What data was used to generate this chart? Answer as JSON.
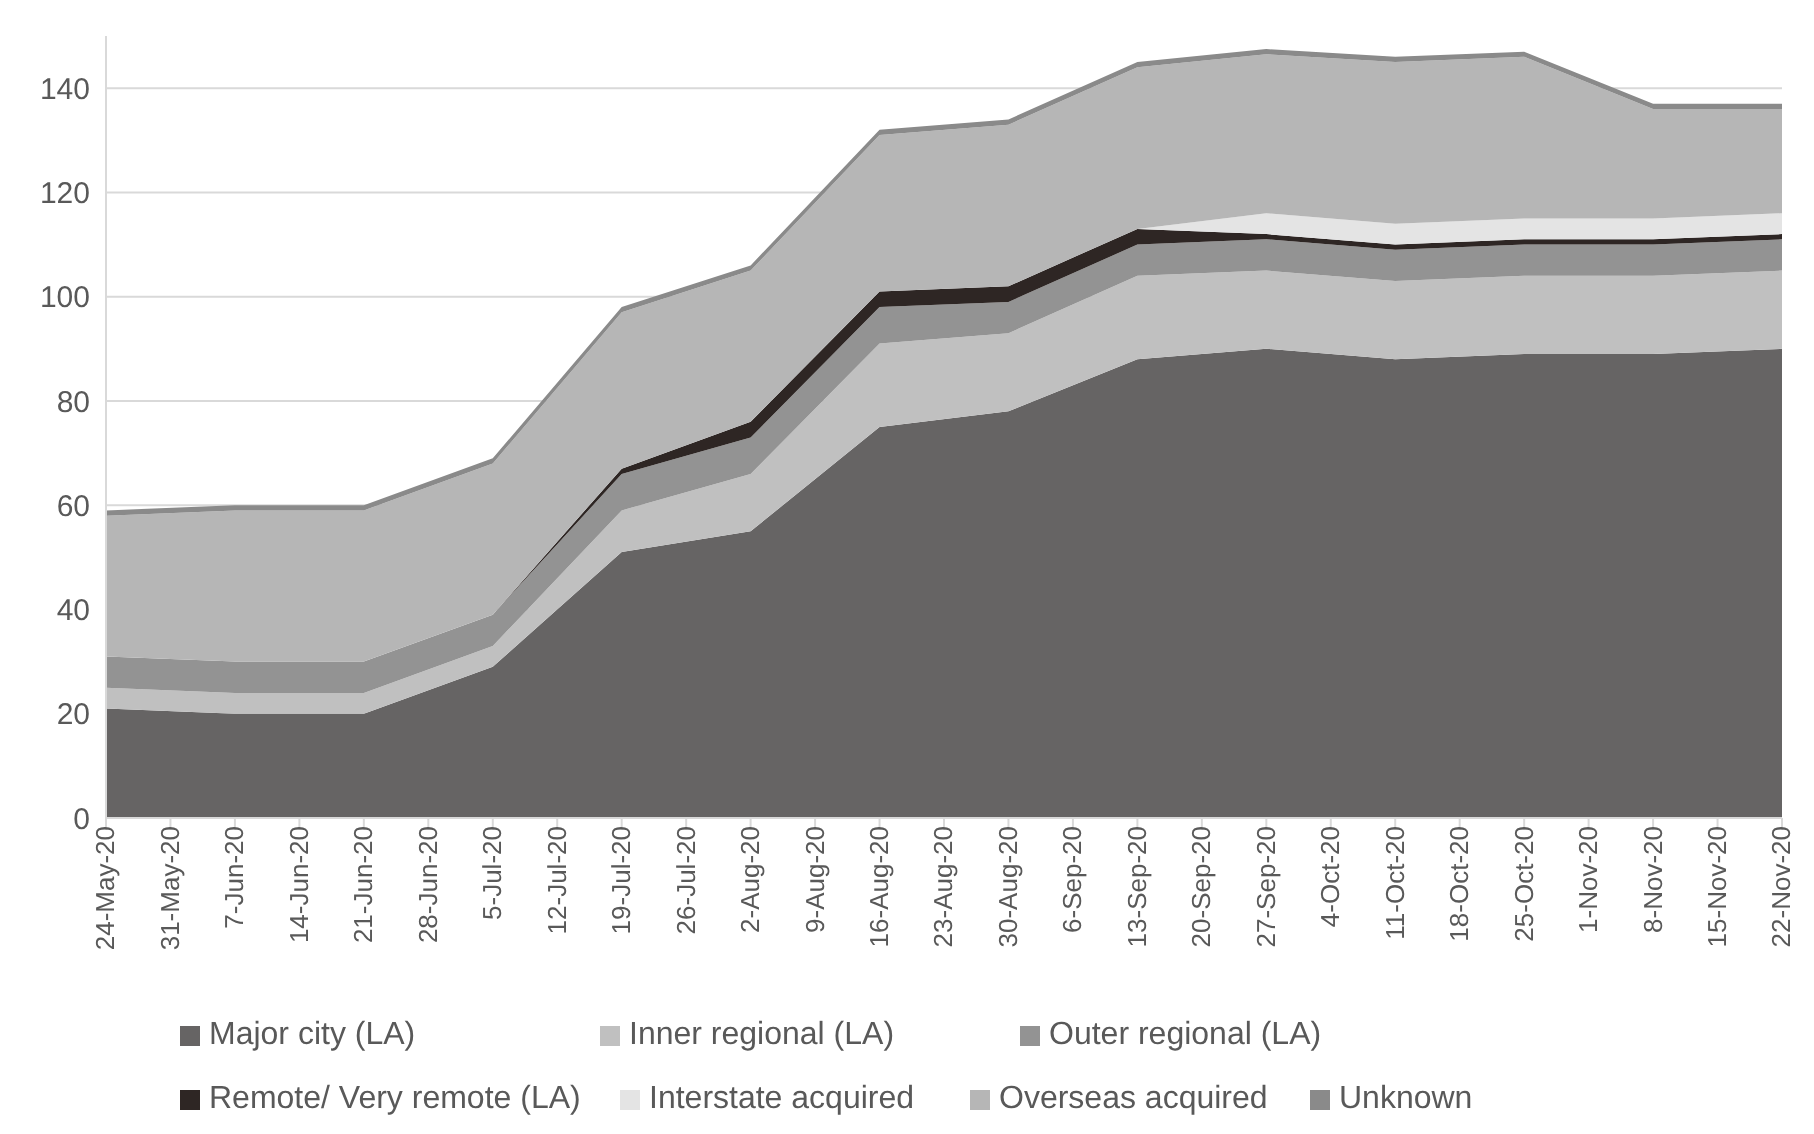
{
  "chart_data": {
    "type": "area",
    "stacked": true,
    "categories": [
      "24-May-20",
      "31-May-20",
      "7-Jun-20",
      "14-Jun-20",
      "21-Jun-20",
      "28-Jun-20",
      "5-Jul-20",
      "12-Jul-20",
      "19-Jul-20",
      "26-Jul-20",
      "2-Aug-20",
      "9-Aug-20",
      "16-Aug-20",
      "23-Aug-20",
      "30-Aug-20",
      "6-Sep-20",
      "13-Sep-20",
      "20-Sep-20",
      "27-Sep-20",
      "4-Oct-20",
      "11-Oct-20",
      "18-Oct-20",
      "25-Oct-20",
      "1-Nov-20",
      "8-Nov-20",
      "15-Nov-20",
      "22-Nov-20"
    ],
    "series": [
      {
        "name": "Major city (LA)",
        "color": "#666464",
        "values": [
          21,
          null,
          20,
          null,
          20,
          null,
          29,
          null,
          51,
          null,
          55,
          null,
          75,
          null,
          78,
          null,
          88,
          null,
          90,
          null,
          88,
          null,
          89,
          null,
          89,
          null,
          90
        ]
      },
      {
        "name": "Inner regional (LA)",
        "color": "#c0c0c0",
        "values": [
          4,
          null,
          4,
          null,
          4,
          null,
          4,
          null,
          8,
          null,
          11,
          null,
          16,
          null,
          15,
          null,
          16,
          null,
          15,
          null,
          15,
          null,
          15,
          null,
          15,
          null,
          15
        ]
      },
      {
        "name": "Outer regional (LA)",
        "color": "#939393",
        "values": [
          6,
          null,
          6,
          null,
          6,
          null,
          6,
          null,
          7,
          null,
          7,
          null,
          7,
          null,
          6,
          null,
          6,
          null,
          6,
          null,
          6,
          null,
          6,
          null,
          6,
          null,
          6
        ]
      },
      {
        "name": "Remote/ Very remote (LA)",
        "color": "#2e2624",
        "values": [
          0,
          null,
          0,
          null,
          0,
          null,
          0,
          null,
          1,
          null,
          3,
          null,
          3,
          null,
          3,
          null,
          3,
          null,
          1,
          null,
          1,
          null,
          1,
          null,
          1,
          null,
          1
        ]
      },
      {
        "name": "Interstate acquired",
        "color": "#e4e4e4",
        "values": [
          0,
          null,
          0,
          null,
          0,
          null,
          0,
          null,
          0,
          null,
          0,
          null,
          0,
          null,
          0,
          null,
          0,
          null,
          4,
          null,
          4,
          null,
          4,
          null,
          4,
          null,
          4
        ]
      },
      {
        "name": "Overseas acquired",
        "color": "#b6b6b6",
        "values": [
          27,
          null,
          29,
          null,
          29,
          null,
          29,
          null,
          30,
          null,
          29,
          null,
          30,
          null,
          31,
          null,
          31,
          null,
          30.5,
          null,
          31,
          null,
          31,
          null,
          21,
          null,
          20
        ]
      },
      {
        "name": "Unknown",
        "color": "#8a8a8a",
        "values": [
          1,
          null,
          1,
          null,
          1,
          null,
          1,
          null,
          1,
          null,
          1,
          null,
          1,
          null,
          1,
          null,
          1,
          null,
          1,
          null,
          1,
          null,
          1,
          null,
          1,
          null,
          1
        ]
      }
    ],
    "yticks": [
      0,
      20,
      40,
      60,
      80,
      100,
      120,
      140
    ],
    "ylim": [
      0,
      150
    ],
    "grid": "y",
    "legend": "bottom"
  }
}
